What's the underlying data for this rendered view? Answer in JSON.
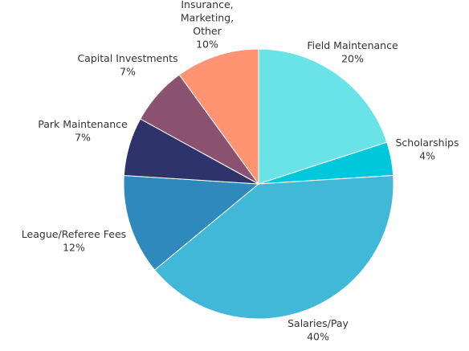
{
  "chart_data": {
    "type": "pie",
    "title": "",
    "slices": [
      {
        "name": "Field Maintenance",
        "value": 20,
        "pct_label": "20%",
        "color": "#6ae3e8"
      },
      {
        "name": "Scholarships",
        "value": 4,
        "pct_label": "4%",
        "color": "#00c8dc"
      },
      {
        "name": "Salaries/Pay",
        "value": 40,
        "pct_label": "40%",
        "color": "#42b8d8"
      },
      {
        "name": "League/Referee Fees",
        "value": 12,
        "pct_label": "12%",
        "color": "#2e8abd"
      },
      {
        "name": "Park Maintenance",
        "value": 7,
        "pct_label": "7%",
        "color": "#2e346b"
      },
      {
        "name": "Capital Investments",
        "value": 7,
        "pct_label": "7%",
        "color": "#8a5270"
      },
      {
        "name": "Insurance, Marketing, Other",
        "label_lines": [
          "Insurance,",
          "Marketing,",
          "Other"
        ],
        "value": 10,
        "pct_label": "10%",
        "color": "#ff9372"
      }
    ]
  }
}
